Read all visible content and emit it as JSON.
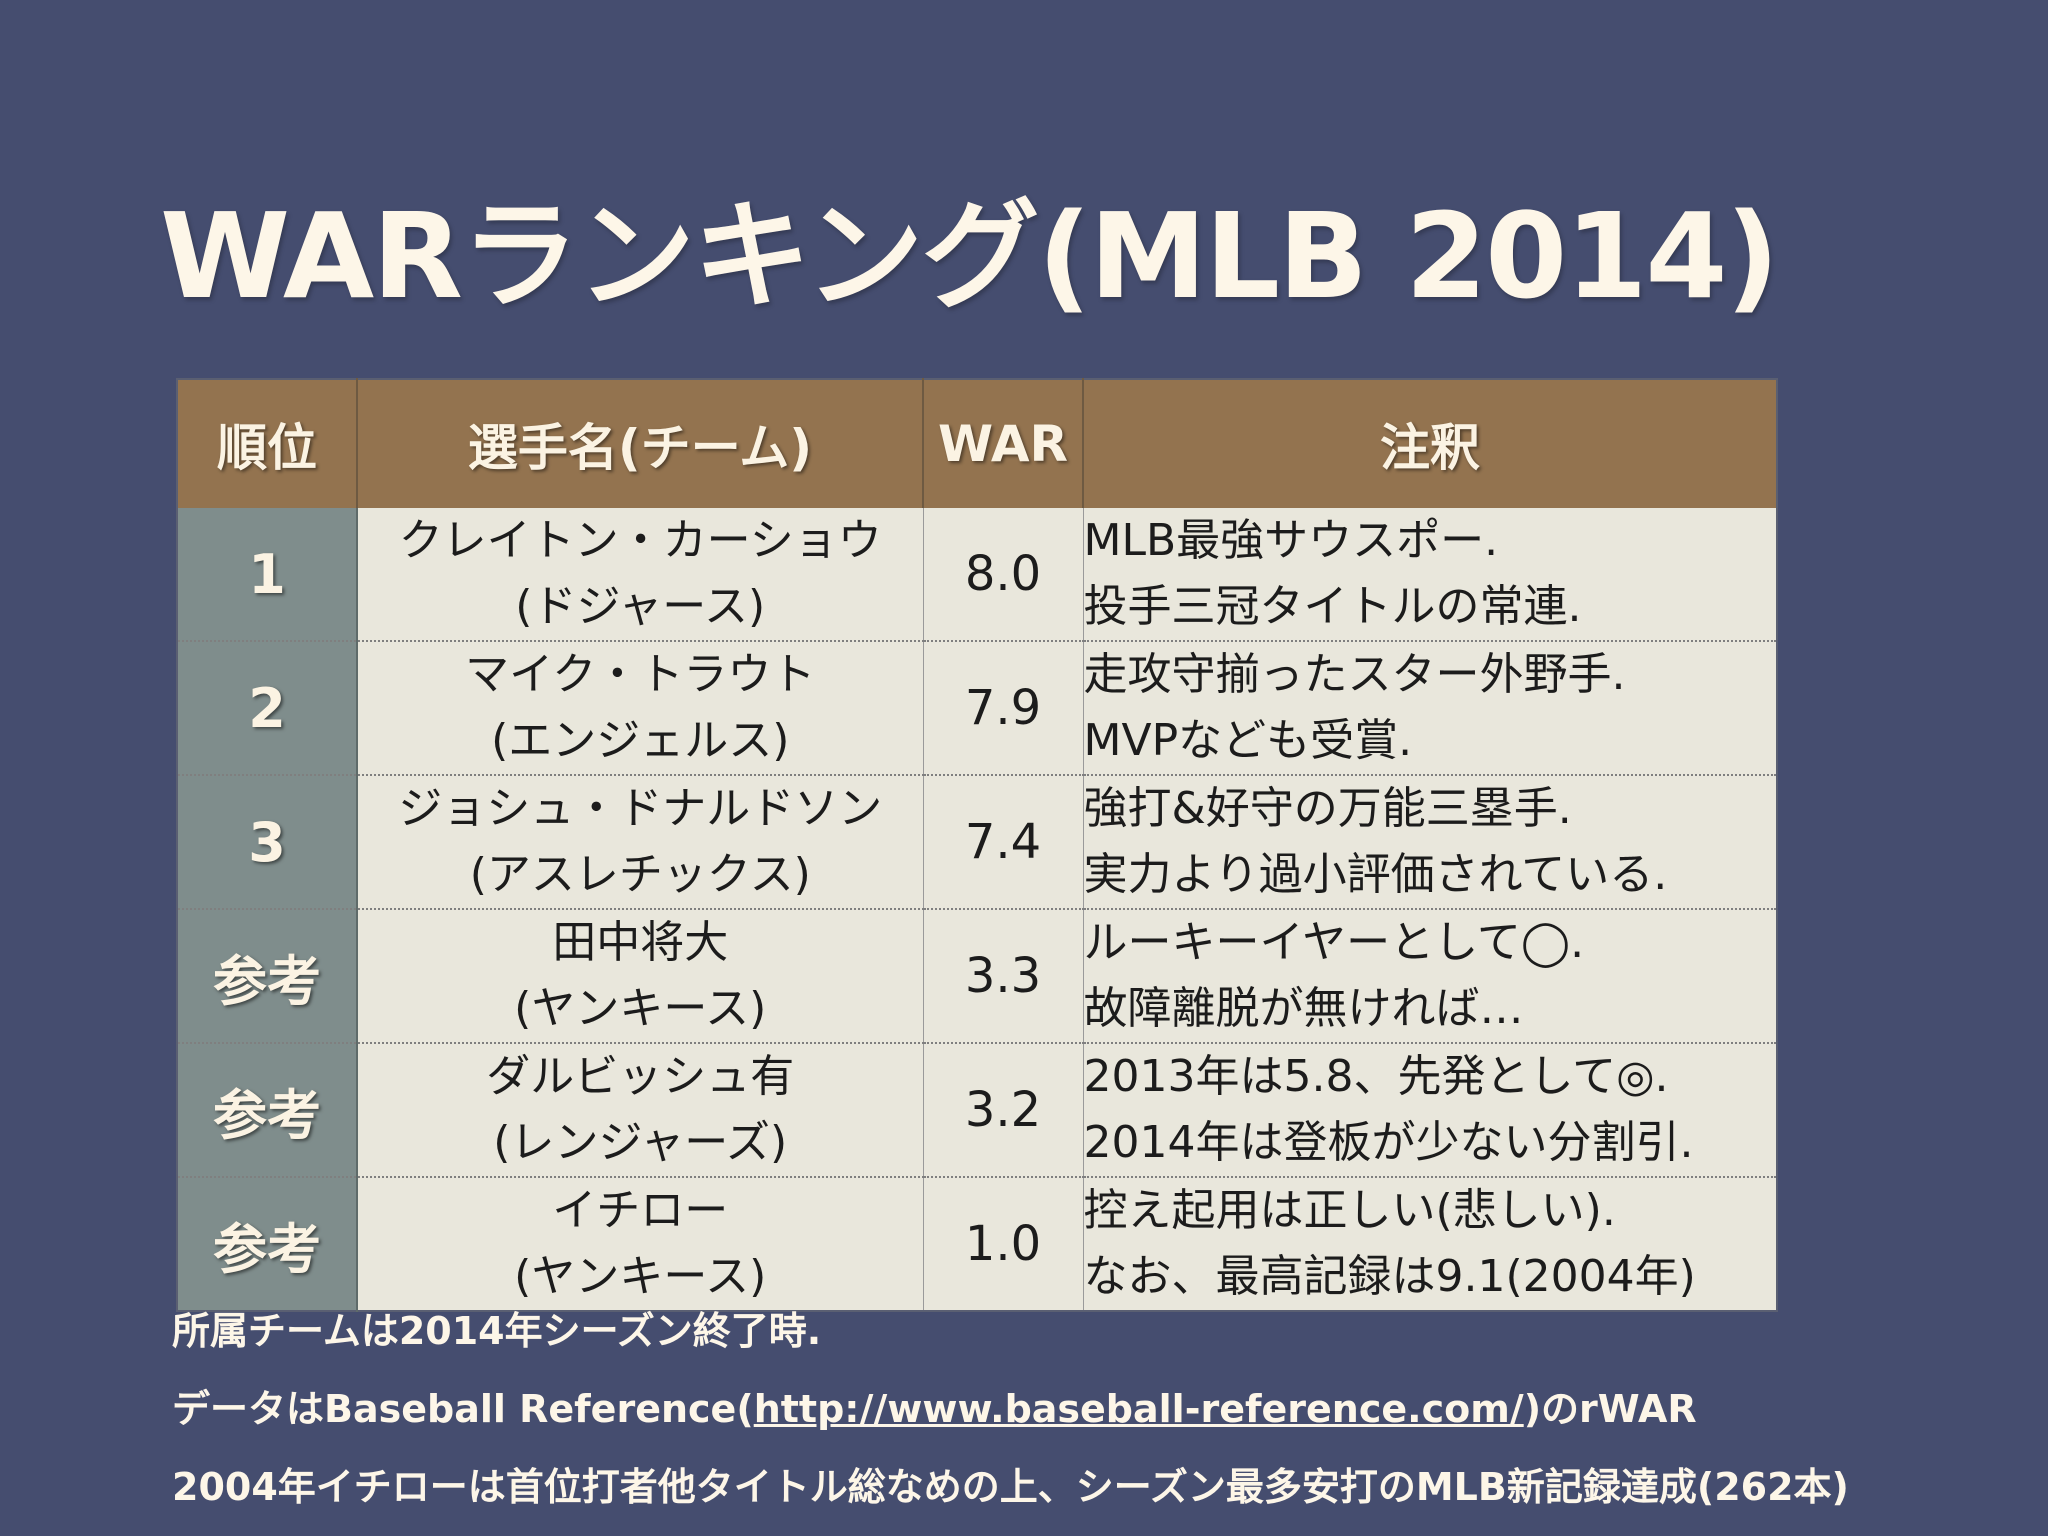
{
  "slide": {
    "title": "WARランキング(MLB 2014)"
  },
  "table": {
    "headers": {
      "rank": "順位",
      "player": "選手名(チーム)",
      "war": "WAR",
      "note": "注釈"
    },
    "rows": [
      {
        "rank": "1",
        "player_name": "クレイトン・カーショウ",
        "team": "(ドジャース)",
        "war": "8.0",
        "note1": "MLB最強サウスポー.",
        "note2": "投手三冠タイトルの常連."
      },
      {
        "rank": "2",
        "player_name": "マイク・トラウト",
        "team": "(エンジェルス)",
        "war": "7.9",
        "note1": "走攻守揃ったスター外野手.",
        "note2": "MVPなども受賞."
      },
      {
        "rank": "3",
        "player_name": "ジョシュ・ドナルドソン",
        "team": "(アスレチックス)",
        "war": "7.4",
        "note1": "強打&好守の万能三塁手.",
        "note2": "実力より過小評価されている."
      },
      {
        "rank": "参考",
        "player_name": "田中将大",
        "team": "(ヤンキース)",
        "war": "3.3",
        "note1": "ルーキーイヤーとして◯.",
        "note2": "故障離脱が無ければ…"
      },
      {
        "rank": "参考",
        "player_name": "ダルビッシュ有",
        "team": "(レンジャーズ)",
        "war": "3.2",
        "note1": "2013年は5.8、先発として◎.",
        "note2": "2014年は登板が少ない分割引."
      },
      {
        "rank": "参考",
        "player_name": "イチロー",
        "team": "(ヤンキース)",
        "war": "1.0",
        "note1": "控え起用は正しい(悲しい).",
        "note2": "なお、最高記録は9.1(2004年)"
      }
    ]
  },
  "footnotes": {
    "line1": "所属チームは2014年シーズン終了時.",
    "line2_prefix": "データはBaseball Reference(",
    "line2_link": "http://www.baseball-reference.com/",
    "line2_suffix": ")のrWAR",
    "line3": "2004年イチローは首位打者他タイトル総なめの上、シーズン最多安打のMLB新記録達成(262本)"
  },
  "colors": {
    "background": "#454d6f",
    "header_brown": "#93734f",
    "rank_gray": "#7f8d8c",
    "cell_bg": "#e9e7dc",
    "title_text": "#fdf6e8"
  }
}
